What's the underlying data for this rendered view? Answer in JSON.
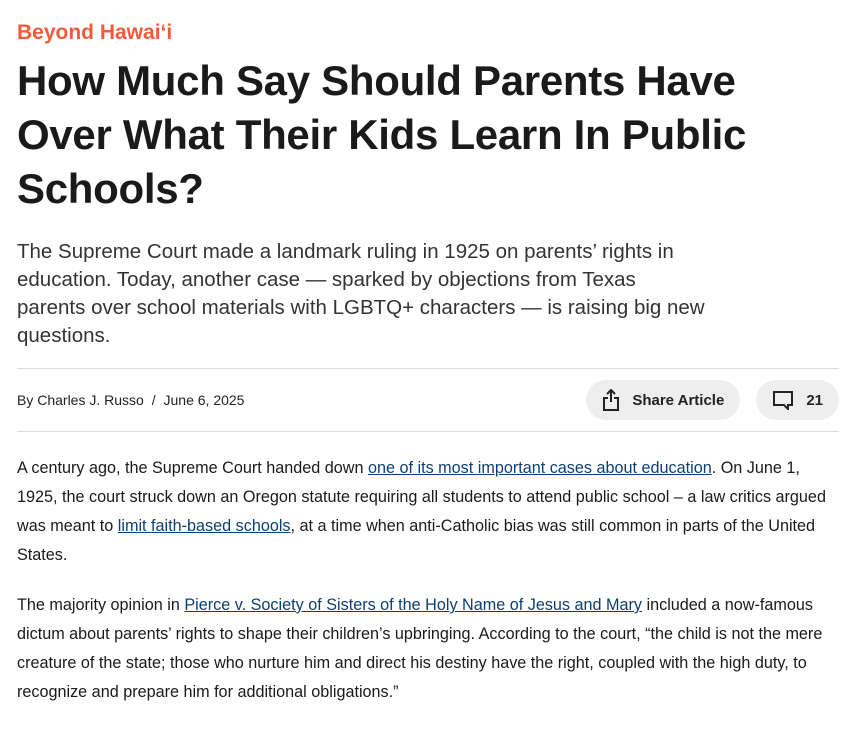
{
  "kicker": "Beyond Hawaiʻi",
  "headline": "How Much Say Should Parents Have Over What Their Kids Learn In Public Schools?",
  "deck": "The Supreme Court made a landmark ruling in 1925 on parents’ rights in education. Today, another case — sparked by objections from Texas parents over school materials with LGBTQ+ characters — is raising big new questions.",
  "byline": {
    "author": "By Charles J. Russo",
    "separator": "/",
    "date": "June 6, 2025"
  },
  "actions": {
    "share_label": "Share Article",
    "share_icon": "share-icon",
    "comments_count": "21",
    "comments_icon": "comment-icon"
  },
  "colors": {
    "kicker": "#f15a3a",
    "link": "#0e3f73"
  },
  "body": {
    "p1": {
      "t1": "A century ago, the Supreme Court handed down ",
      "link1": "one of its most important cases about education",
      "t2": ". On June 1, 1925, the court struck down an Oregon statute requiring all students to attend public school – a law critics argued was meant to ",
      "link2": "limit faith-based schools",
      "t3": ", at a time when anti-Catholic bias was still common in parts of the United States."
    },
    "p2": {
      "t1": "The majority opinion in ",
      "link1": "Pierce v. Society of Sisters of the Holy Name of Jesus and Mary",
      "t2": " included a now-famous dictum about parents’ rights to shape their children’s upbringing. According to the court, “the child is not the mere creature of the state; those who nurture him and direct his destiny have the right, coupled with the high duty, to recognize and prepare him for additional obligations.”"
    }
  }
}
